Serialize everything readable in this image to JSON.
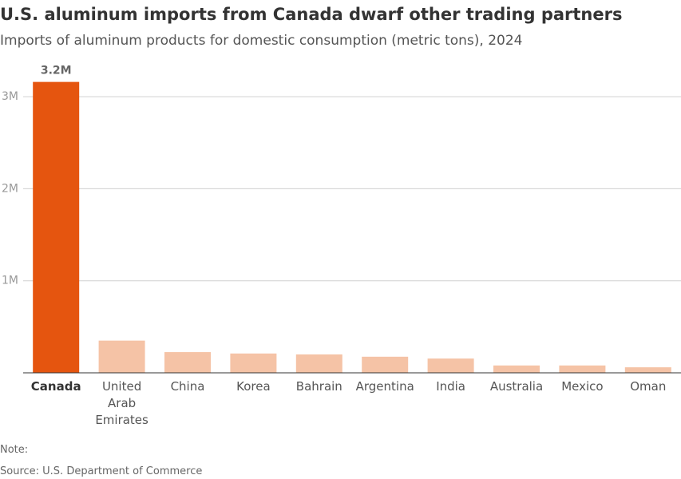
{
  "chart_data": {
    "type": "bar",
    "title": "U.S. aluminum imports from Canada dwarf other trading partners",
    "subtitle": "Imports of aluminum products for domestic consumption (metric tons), 2024",
    "categories": [
      "Canada",
      "United Arab Emirates",
      "China",
      "Korea",
      "Bahrain",
      "Argentina",
      "India",
      "Australia",
      "Mexico",
      "Oman"
    ],
    "values": [
      3160000,
      350000,
      225000,
      210000,
      200000,
      175000,
      155000,
      80000,
      80000,
      60000
    ],
    "value_labels": [
      "3.2M",
      null,
      null,
      null,
      null,
      null,
      null,
      null,
      null,
      null
    ],
    "colors": [
      "#e5550f",
      "#f5c3a6",
      "#f5c3a6",
      "#f5c3a6",
      "#f5c3a6",
      "#f5c3a6",
      "#f5c3a6",
      "#f5c3a6",
      "#f5c3a6",
      "#f5c3a6"
    ],
    "ylim": [
      0,
      3200000
    ],
    "yticks": [
      {
        "value": 1000000,
        "label": "1M"
      },
      {
        "value": 2000000,
        "label": "2M"
      },
      {
        "value": 3000000,
        "label": "3M"
      }
    ],
    "grid": true,
    "note": "Note:",
    "source": "Source: U.S. Department of Commerce"
  }
}
